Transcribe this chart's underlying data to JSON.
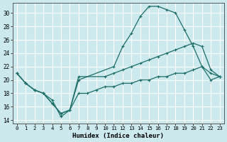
{
  "xlabel": "Humidex (Indice chaleur)",
  "bg_color": "#cce9ee",
  "grid_color": "#ffffff",
  "line_color": "#1e6e68",
  "xlim": [
    -0.5,
    23.5
  ],
  "ylim": [
    13.5,
    31.5
  ],
  "yticks": [
    14,
    16,
    18,
    20,
    22,
    24,
    26,
    28,
    30
  ],
  "xticks": [
    0,
    1,
    2,
    3,
    4,
    5,
    6,
    7,
    8,
    9,
    10,
    11,
    12,
    13,
    14,
    15,
    16,
    17,
    18,
    19,
    20,
    21,
    22,
    23
  ],
  "line_hump_x": [
    0,
    1,
    2,
    3,
    4,
    5,
    6,
    7,
    11,
    12,
    13,
    14,
    15,
    16,
    17,
    18,
    19,
    20,
    21,
    22,
    23
  ],
  "line_hump_y": [
    21,
    19.5,
    18.5,
    18,
    16.5,
    15,
    15.5,
    20,
    22,
    25,
    27,
    29.5,
    31,
    31,
    30.5,
    30,
    27.5,
    25,
    22,
    21,
    20.5
  ],
  "line_diag_x": [
    0,
    1,
    2,
    3,
    4,
    5,
    6,
    7,
    10,
    11,
    12,
    13,
    14,
    15,
    16,
    17,
    18,
    19,
    20,
    21,
    22,
    23
  ],
  "line_diag_y": [
    21,
    19.5,
    18.5,
    18,
    16.5,
    15,
    15.5,
    20.5,
    20.5,
    21,
    21.5,
    22,
    22.5,
    23,
    23.5,
    24,
    24.5,
    25,
    25.5,
    25,
    21.5,
    20.5
  ],
  "line_flat_x": [
    0,
    1,
    2,
    3,
    4,
    5,
    6,
    7,
    8,
    9,
    10,
    11,
    12,
    13,
    14,
    15,
    16,
    17,
    18,
    19,
    20,
    21,
    22,
    23
  ],
  "line_flat_y": [
    21,
    19.5,
    18.5,
    18,
    17,
    14.5,
    15.5,
    18,
    18,
    18.5,
    19,
    19,
    19.5,
    19.5,
    20,
    20,
    20.5,
    20.5,
    21,
    21,
    21.5,
    22,
    20,
    20.5
  ]
}
